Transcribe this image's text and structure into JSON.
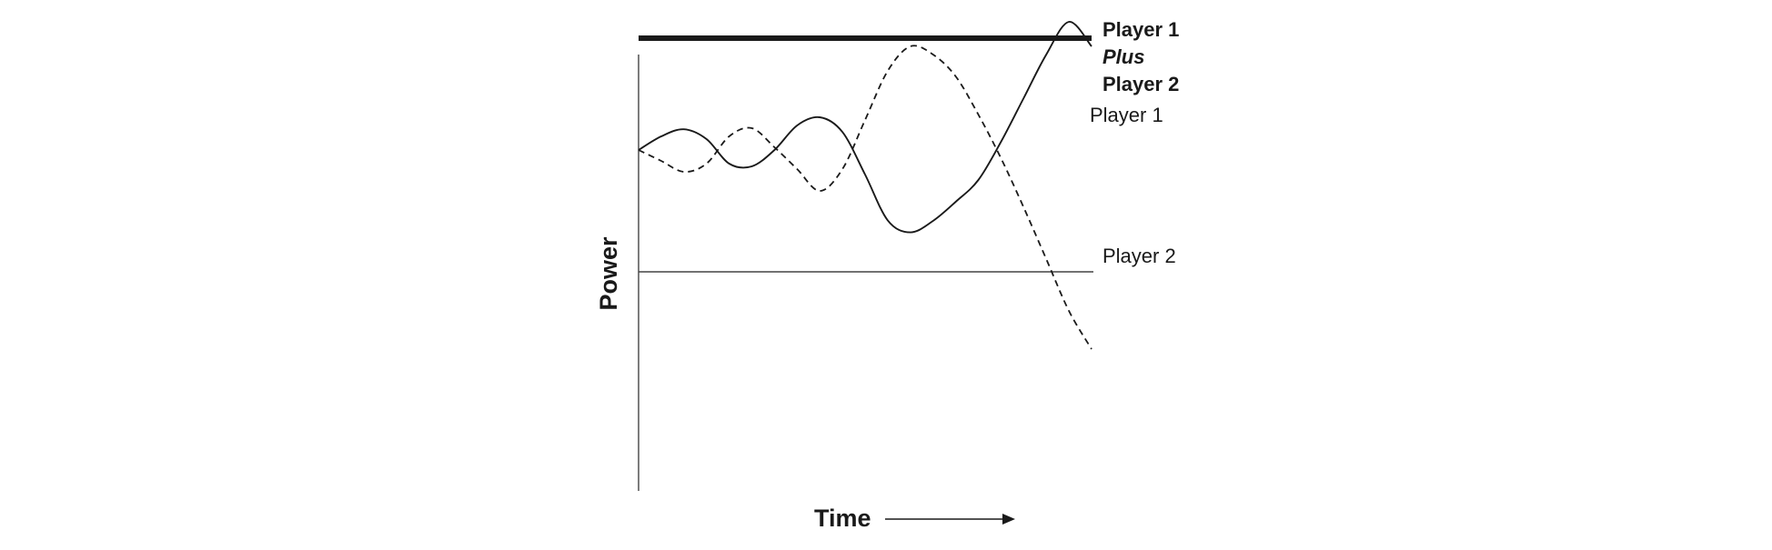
{
  "chart_data": {
    "type": "line",
    "title": "",
    "xlabel": "Time",
    "ylabel": "Power",
    "xlim": [
      0,
      100
    ],
    "ylim": [
      0,
      100
    ],
    "grid": false,
    "legend": "none",
    "x": [
      0,
      5,
      10,
      15,
      20,
      25,
      30,
      35,
      40,
      45,
      50,
      55,
      60,
      65,
      70,
      75,
      80,
      85,
      90,
      95,
      100
    ],
    "series": [
      {
        "name": "Player 1",
        "style": "solid",
        "values": [
          72.5,
          75.0,
          76.3,
          74.5,
          70.0,
          69.5,
          72.5,
          77.0,
          78.5,
          75.8,
          68.0,
          59.6,
          57.4,
          59.5,
          63.0,
          67.0,
          74.0,
          82.0,
          90.0,
          96.0,
          91.5
        ]
      },
      {
        "name": "Player 2",
        "style": "dashed",
        "values": [
          72.5,
          70.5,
          68.5,
          70.0,
          75.0,
          76.5,
          73.0,
          69.0,
          65.0,
          69.0,
          78.0,
          87.0,
          91.5,
          90.0,
          86.0,
          79.0,
          71.0,
          62.0,
          52.5,
          43.0,
          36.0
        ]
      },
      {
        "name": "Player 1 Plus Player 2",
        "style": "thick",
        "values": [
          93,
          93,
          93,
          93,
          93,
          93,
          93,
          93,
          93,
          93,
          93,
          93,
          93,
          93,
          93,
          93,
          93,
          93,
          93,
          93,
          93
        ]
      }
    ],
    "baseline": 50,
    "annotations": {
      "sum_line": [
        "Player 1",
        "Plus",
        "Player 2"
      ],
      "player1": "Player 1",
      "player2": "Player 2"
    },
    "colors": {
      "line": "#1a1a1a",
      "axis": "#444444"
    }
  }
}
